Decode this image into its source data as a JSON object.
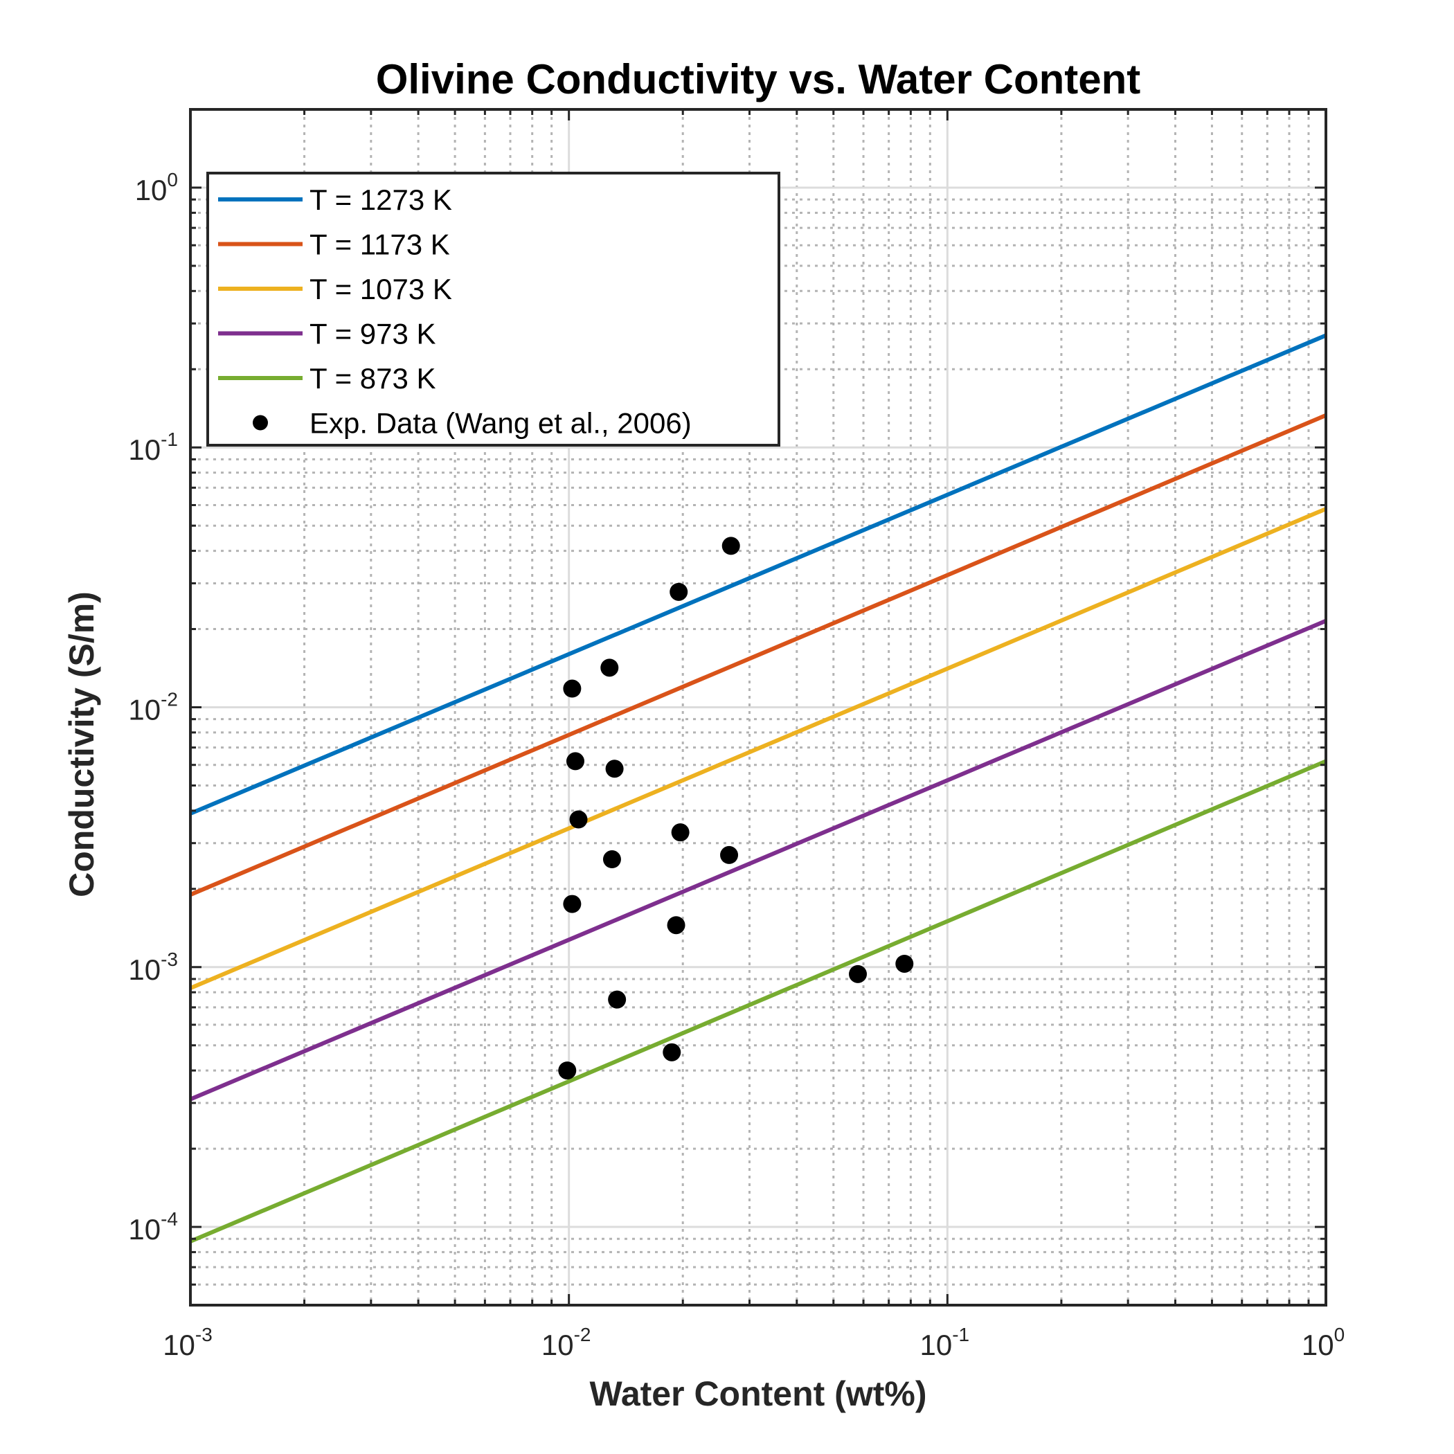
{
  "chart_data": {
    "type": "line",
    "title": "Olivine Conductivity vs. Water Content",
    "xlabel": "Water Content (wt%)",
    "ylabel": "Conductivity (S/m)",
    "xscale": "log",
    "yscale": "log",
    "xlim": [
      0.001,
      1
    ],
    "ylim": [
      5e-05,
      2
    ],
    "x_ticks": [
      0.001,
      0.01,
      0.1,
      1
    ],
    "x_tick_labels": [
      {
        "base": "10",
        "exp": "-3"
      },
      {
        "base": "10",
        "exp": "-2"
      },
      {
        "base": "10",
        "exp": "-1"
      },
      {
        "base": "10",
        "exp": "0"
      }
    ],
    "y_ticks": [
      0.0001,
      0.001,
      0.01,
      0.1,
      1
    ],
    "y_tick_labels": [
      {
        "base": "10",
        "exp": "-4"
      },
      {
        "base": "10",
        "exp": "-3"
      },
      {
        "base": "10",
        "exp": "-2"
      },
      {
        "base": "10",
        "exp": "-1"
      },
      {
        "base": "10",
        "exp": "0"
      }
    ],
    "grid": "major and minor",
    "legend_position": "top-left",
    "series": [
      {
        "name": "T = 1273 K",
        "color": "#0072BD",
        "x": [
          0.001,
          1
        ],
        "y": [
          0.0039,
          0.27
        ]
      },
      {
        "name": "T = 1173 K",
        "color": "#D95319",
        "x": [
          0.001,
          1
        ],
        "y": [
          0.0019,
          0.133
        ]
      },
      {
        "name": "T = 1073 K",
        "color": "#EDB120",
        "x": [
          0.001,
          1
        ],
        "y": [
          0.00083,
          0.058
        ]
      },
      {
        "name": "T = 973 K",
        "color": "#7E2F8E",
        "x": [
          0.001,
          1
        ],
        "y": [
          0.00031,
          0.0215
        ]
      },
      {
        "name": "T = 873 K",
        "color": "#77AC30",
        "x": [
          0.001,
          1
        ],
        "y": [
          8.8e-05,
          0.0062
        ]
      }
    ],
    "scatter": {
      "name": "Exp. Data (Wang et al., 2006)",
      "color": "#000000",
      "points": [
        {
          "x": 0.0099,
          "y": 0.0004
        },
        {
          "x": 0.0102,
          "y": 0.0118
        },
        {
          "x": 0.0102,
          "y": 0.00175
        },
        {
          "x": 0.0104,
          "y": 0.0062
        },
        {
          "x": 0.0106,
          "y": 0.0037
        },
        {
          "x": 0.0128,
          "y": 0.0142
        },
        {
          "x": 0.013,
          "y": 0.0026
        },
        {
          "x": 0.0132,
          "y": 0.0058
        },
        {
          "x": 0.0134,
          "y": 0.00075
        },
        {
          "x": 0.0187,
          "y": 0.00047
        },
        {
          "x": 0.0192,
          "y": 0.00145
        },
        {
          "x": 0.0195,
          "y": 0.0278
        },
        {
          "x": 0.0197,
          "y": 0.0033
        },
        {
          "x": 0.0265,
          "y": 0.0027
        },
        {
          "x": 0.0268,
          "y": 0.0418
        },
        {
          "x": 0.058,
          "y": 0.00094
        },
        {
          "x": 0.077,
          "y": 0.00103
        }
      ]
    }
  }
}
